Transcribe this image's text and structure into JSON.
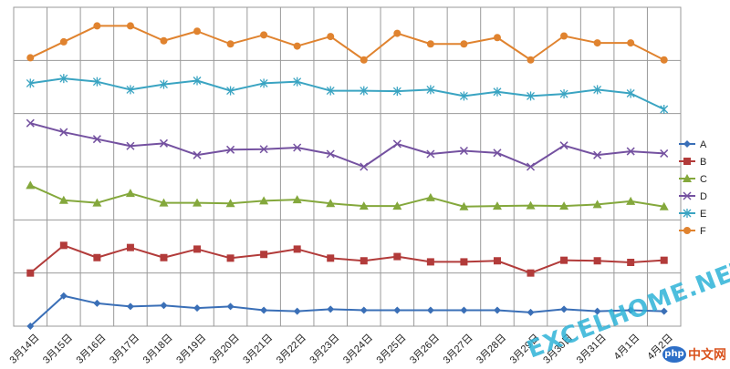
{
  "chart_data": {
    "type": "line",
    "title": "",
    "xlabel": "",
    "ylabel": "",
    "ylim": [
      0,
      6
    ],
    "grid": "horizontal and vertical",
    "legend": "right",
    "categories": [
      "3月14日",
      "3月15日",
      "3月16日",
      "3月17日",
      "3月18日",
      "3月19日",
      "3月20日",
      "3月21日",
      "3月22日",
      "3月23日",
      "3月24日",
      "3月25日",
      "3月26日",
      "3月27日",
      "3月28日",
      "3月29日",
      "3月30日",
      "3月31日",
      "4月1日",
      "4月2日"
    ],
    "series": [
      {
        "name": "A",
        "color": "#3a6fb7",
        "marker": "diamond",
        "values": [
          0.0,
          0.57,
          0.43,
          0.37,
          0.39,
          0.34,
          0.37,
          0.3,
          0.28,
          0.32,
          0.3,
          0.3,
          0.3,
          0.3,
          0.3,
          0.26,
          0.32,
          0.28,
          0.3,
          0.28
        ]
      },
      {
        "name": "B",
        "color": "#b23b3a",
        "marker": "square",
        "values": [
          1.0,
          1.52,
          1.29,
          1.48,
          1.29,
          1.45,
          1.28,
          1.35,
          1.45,
          1.28,
          1.23,
          1.31,
          1.21,
          1.21,
          1.23,
          1.0,
          1.24,
          1.23,
          1.2,
          1.24
        ]
      },
      {
        "name": "C",
        "color": "#84a83c",
        "marker": "triangle",
        "values": [
          2.65,
          2.37,
          2.32,
          2.5,
          2.32,
          2.32,
          2.31,
          2.36,
          2.38,
          2.31,
          2.26,
          2.26,
          2.42,
          2.25,
          2.26,
          2.27,
          2.26,
          2.29,
          2.35,
          2.25
        ]
      },
      {
        "name": "D",
        "color": "#7451a0",
        "marker": "x",
        "values": [
          3.82,
          3.65,
          3.52,
          3.39,
          3.44,
          3.22,
          3.32,
          3.33,
          3.36,
          3.24,
          3.0,
          3.43,
          3.24,
          3.3,
          3.26,
          3.0,
          3.4,
          3.22,
          3.29,
          3.25
        ]
      },
      {
        "name": "E",
        "color": "#3aa4c2",
        "marker": "star",
        "values": [
          4.57,
          4.66,
          4.6,
          4.45,
          4.55,
          4.62,
          4.43,
          4.57,
          4.6,
          4.43,
          4.43,
          4.42,
          4.45,
          4.33,
          4.41,
          4.33,
          4.37,
          4.45,
          4.38,
          4.08
        ]
      },
      {
        "name": "F",
        "color": "#e0832f",
        "marker": "circle",
        "values": [
          5.05,
          5.35,
          5.65,
          5.65,
          5.37,
          5.55,
          5.31,
          5.48,
          5.27,
          5.45,
          5.01,
          5.51,
          5.31,
          5.31,
          5.43,
          5.01,
          5.46,
          5.33,
          5.33,
          5.01
        ]
      }
    ]
  },
  "watermark": "EXCELHOME.NET",
  "logo": {
    "badge": "php",
    "text": "中文网"
  }
}
